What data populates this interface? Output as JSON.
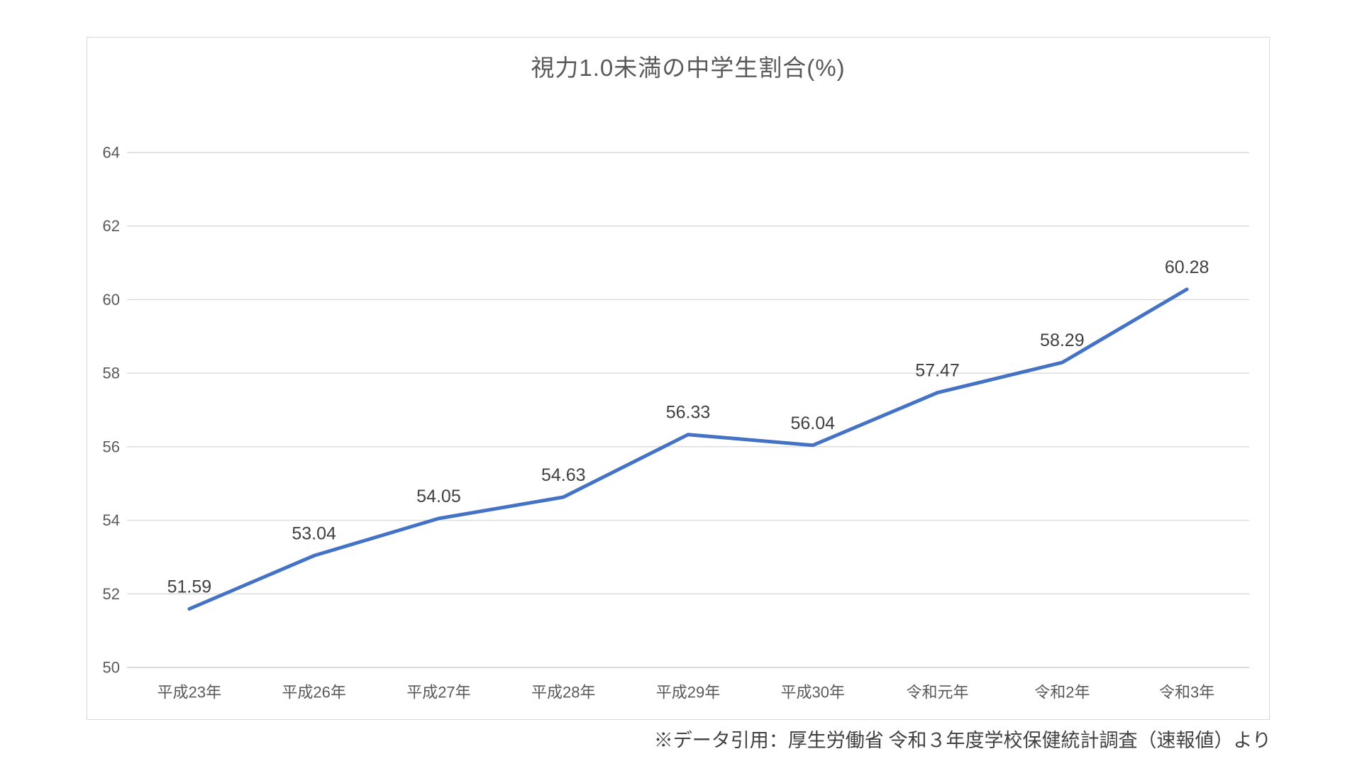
{
  "chart_data": {
    "type": "line",
    "title": "視力1.0未満の中学生割合(%)",
    "categories": [
      "平成23年",
      "平成26年",
      "平成27年",
      "平成28年",
      "平成29年",
      "平成30年",
      "令和元年",
      "令和2年",
      "令和3年"
    ],
    "values": [
      51.59,
      53.04,
      54.05,
      54.63,
      56.33,
      56.04,
      57.47,
      58.29,
      60.28
    ],
    "data_labels": [
      "51.59",
      "53.04",
      "54.05",
      "54.63",
      "56.33",
      "56.04",
      "57.47",
      "58.29",
      "60.28"
    ],
    "xlabel": "",
    "ylabel": "",
    "ylim": [
      50,
      64
    ],
    "ytick_step": 2,
    "yticks": [
      50,
      52,
      54,
      56,
      58,
      60,
      62,
      64
    ],
    "grid": true,
    "legend": "none",
    "colors": {
      "line": "#4472C4",
      "title": "#595959",
      "axis_labels": "#595959",
      "data_labels": "#404040",
      "gridline": "#D9D9D9",
      "axis_line": "#CFCFCF",
      "frame_border": "#D9D9D9"
    }
  },
  "source_note": "※データ引用：厚生労働省 令和３年度学校保健統計調査（速報値）より"
}
